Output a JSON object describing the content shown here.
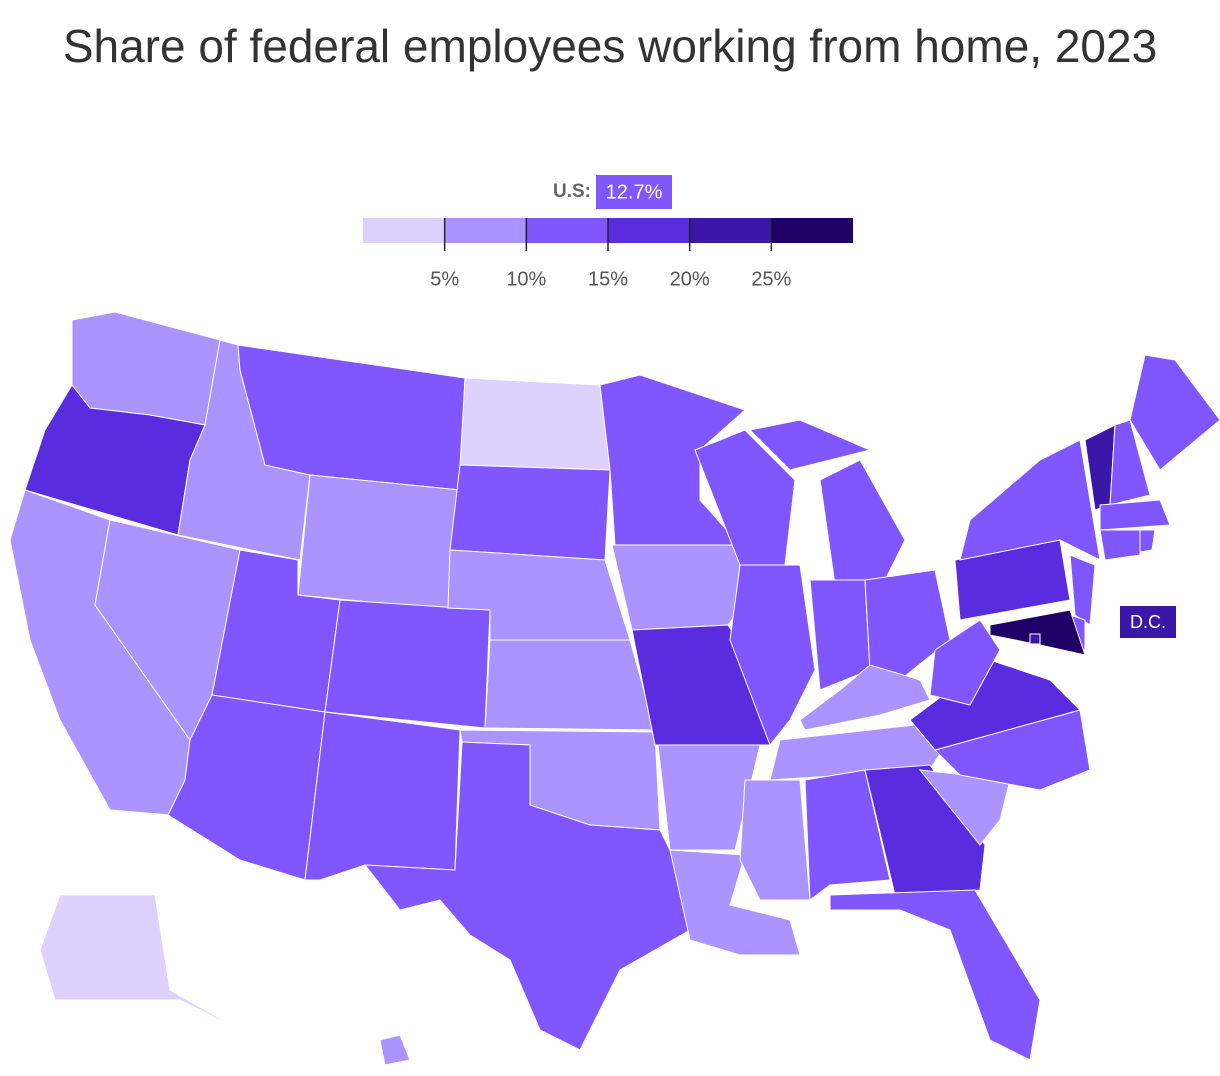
{
  "chart_data": {
    "type": "choropleth",
    "title": "Share of federal employees working from home, 2023",
    "us_average": {
      "label": "U.S:",
      "value": 12.7,
      "value_label": "12.7%"
    },
    "legend": {
      "xlim": [
        0,
        30
      ],
      "bins": [
        0,
        5,
        10,
        15,
        20,
        25,
        30
      ],
      "colors": [
        "#ddd2ff",
        "#ab94ff",
        "#7f56ff",
        "#5a2ce0",
        "#3b17a8",
        "#1e0066"
      ],
      "ticks": [
        {
          "value": 5,
          "label": "5%"
        },
        {
          "value": 10,
          "label": "10%"
        },
        {
          "value": 15,
          "label": "15%"
        },
        {
          "value": 20,
          "label": "20%"
        },
        {
          "value": 25,
          "label": "25%"
        }
      ]
    },
    "dc_label": "D.C.",
    "values": [
      7.5,
      17.5,
      7.5,
      7.5,
      7.5,
      12.5,
      7.5,
      12.5,
      12.5,
      12.5,
      12.5,
      2.5,
      12.5,
      7.5,
      7.5,
      7.5,
      12.5,
      12.5,
      7.5,
      17.5,
      7.5,
      7.5,
      12.5,
      12.5,
      12.5,
      12.5,
      12.5,
      7.5,
      7.5,
      7.5,
      12.5,
      17.5,
      12.5,
      7.5,
      12.5,
      17.5,
      12.5,
      17.5,
      12.5,
      22.5,
      12.5,
      12.5,
      12.5,
      12.5,
      12.5,
      12.5,
      12.5,
      27.5,
      22.5,
      2.5,
      7.5
    ]
  }
}
